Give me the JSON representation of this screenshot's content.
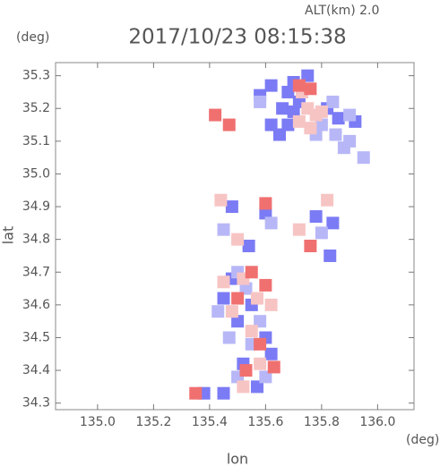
{
  "chart_data": {
    "type": "scatter",
    "header": "ALT(km) 2.0",
    "title": "2017/10/23 08:15:38",
    "y_unit": "(deg)",
    "x_unit": "(deg)",
    "xlabel": "lon",
    "ylabel": "lat",
    "xlim": [
      134.85,
      136.13
    ],
    "ylim": [
      34.28,
      35.34
    ],
    "xticks": [
      {
        "value": 135.0,
        "label": "135.0"
      },
      135.2,
      135.4,
      135.6,
      135.8,
      {
        "value": 136.0,
        "label": "136.0"
      }
    ],
    "yticks": [
      35.3,
      35.2,
      35.1,
      {
        "value": 35.0,
        "label": "35.0"
      },
      34.9,
      34.8,
      34.7,
      34.6,
      34.5,
      34.4,
      34.3
    ],
    "series": [
      {
        "color": "#7b7bf5",
        "x": [
          135.7,
          135.68,
          135.66,
          135.7,
          135.72,
          135.68,
          135.65,
          135.75,
          135.62,
          135.82,
          135.86,
          135.92,
          135.62,
          135.58,
          135.48,
          135.6,
          135.78,
          135.84,
          135.54,
          135.83,
          135.48,
          135.55,
          135.5,
          135.6,
          135.52,
          135.57,
          135.45,
          135.38,
          135.62,
          135.45
        ],
        "values": [
          35.28,
          35.25,
          35.2,
          35.19,
          35.22,
          35.15,
          35.12,
          35.3,
          35.27,
          35.2,
          35.17,
          35.16,
          35.15,
          35.24,
          34.9,
          34.88,
          34.87,
          34.85,
          34.78,
          34.75,
          34.68,
          34.6,
          34.55,
          34.5,
          34.42,
          34.35,
          34.33,
          34.33,
          34.45,
          34.62
        ]
      },
      {
        "color": "#b7b7f7",
        "x": [
          135.8,
          135.85,
          135.88,
          135.78,
          135.84,
          135.9,
          135.95,
          135.9,
          135.58,
          135.45,
          135.62,
          135.8,
          135.5,
          135.53,
          135.58,
          135.55,
          135.5,
          135.6,
          135.47,
          135.43
        ],
        "values": [
          35.15,
          35.12,
          35.08,
          35.12,
          35.22,
          35.1,
          35.05,
          35.18,
          35.22,
          34.83,
          34.85,
          34.82,
          34.7,
          34.65,
          34.55,
          34.48,
          34.38,
          34.38,
          34.5,
          34.58
        ]
      },
      {
        "color": "#f7c4c4",
        "x": [
          135.75,
          135.78,
          135.72,
          135.76,
          135.8,
          135.73,
          135.44,
          135.82,
          135.5,
          135.72,
          135.52,
          135.57,
          135.48,
          135.55,
          135.58,
          135.52,
          135.62,
          135.45
        ],
        "values": [
          35.2,
          35.18,
          35.16,
          35.14,
          35.19,
          35.25,
          34.92,
          34.92,
          34.8,
          34.83,
          34.68,
          34.62,
          34.58,
          34.52,
          34.42,
          34.35,
          34.6,
          34.67
        ]
      },
      {
        "color": "#f07070",
        "x": [
          135.72,
          135.76,
          135.42,
          135.47,
          135.6,
          135.76,
          135.55,
          135.6,
          135.5,
          135.58,
          135.53,
          135.35,
          135.63
        ],
        "values": [
          35.27,
          35.26,
          35.18,
          35.15,
          34.91,
          34.78,
          34.7,
          34.66,
          34.62,
          34.48,
          34.4,
          34.33,
          34.41
        ]
      }
    ]
  }
}
